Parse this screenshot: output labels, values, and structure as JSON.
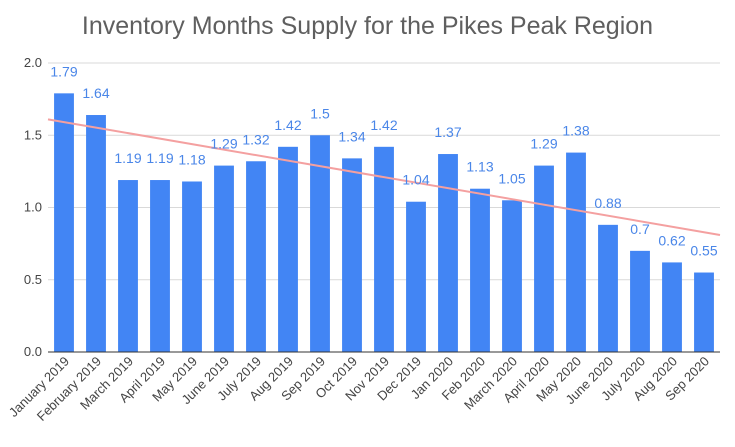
{
  "chart_data": {
    "type": "bar",
    "title": "Inventory Months Supply for the Pikes Peak Region",
    "categories": [
      "January 2019",
      "February 2019",
      "March 2019",
      "April 2019",
      "May 2019",
      "June 2019",
      "July 2019",
      "Aug 2019",
      "Sep 2019",
      "Oct 2019",
      "Nov 2019",
      "Dec 2019",
      "Jan 2020",
      "Feb 2020",
      "March 2020",
      "April 2020",
      "May 2020",
      "June 2020",
      "July 2020",
      "Aug 2020",
      "Sep 2020"
    ],
    "values": [
      1.79,
      1.64,
      1.19,
      1.19,
      1.18,
      1.29,
      1.32,
      1.42,
      1.5,
      1.34,
      1.42,
      1.04,
      1.37,
      1.13,
      1.05,
      1.29,
      1.38,
      0.88,
      0.7,
      0.62,
      0.55
    ],
    "data_labels": [
      "1.79",
      "1.64",
      "1.19",
      "1.19",
      "1.18",
      "1.29",
      "1.32",
      "1.42",
      "1.5",
      "1.34",
      "1.42",
      "1.04",
      "1.37",
      "1.13",
      "1.05",
      "1.29",
      "1.38",
      "0.88",
      "0.7",
      "0.62",
      "0.55"
    ],
    "ylim": [
      0,
      2.0
    ],
    "y_ticks": [
      0,
      0.5,
      1.0,
      1.5,
      2.0
    ],
    "y_tick_labels": [
      "0.0",
      "0.5",
      "1.0",
      "1.5",
      "2.0"
    ],
    "xlabel": "",
    "ylabel": "",
    "grid": true,
    "legend": "none",
    "trendline": {
      "type": "linear",
      "start": 1.61,
      "end": 0.81,
      "color": "#f4a0a0"
    },
    "bar_color": "#4285f4",
    "label_color": "#4a86e8"
  }
}
